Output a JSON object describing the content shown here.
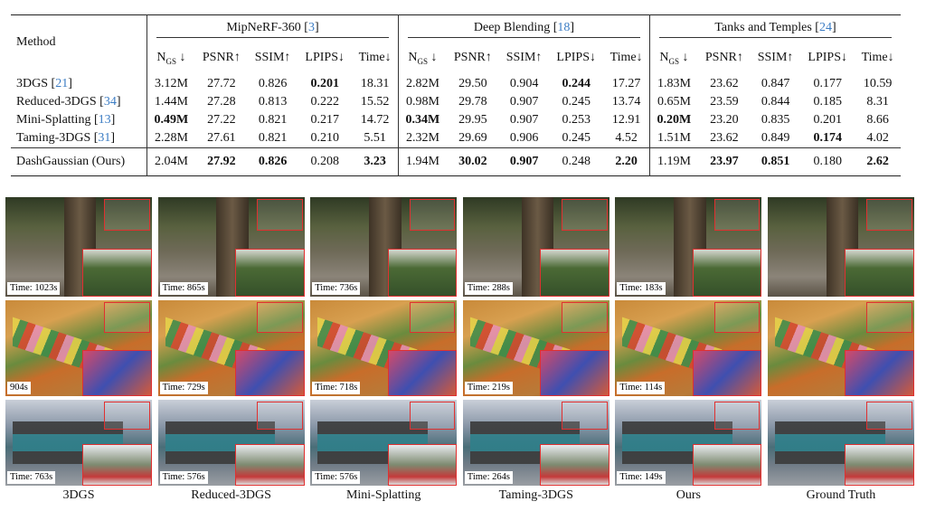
{
  "table": {
    "method_header": "Method",
    "groups": [
      {
        "name": "MipNeRF-360",
        "ref": "[3]"
      },
      {
        "name": "Deep Blending",
        "ref": "[18]"
      },
      {
        "name": "Tanks and Temples",
        "ref": "[24]"
      }
    ],
    "metrics": [
      {
        "main": "N",
        "sub": "GS",
        "arrow": " ↓"
      },
      {
        "main": "PSNR",
        "arrow": "↑"
      },
      {
        "main": "SSIM",
        "arrow": "↑"
      },
      {
        "main": "LPIPS",
        "arrow": "↓"
      },
      {
        "main": "Time",
        "arrow": "↓"
      }
    ],
    "rows": [
      {
        "method": "3DGS",
        "ref": "[21]",
        "cells": [
          "3.12M",
          "27.72",
          "0.826",
          "0.201",
          "18.31",
          "2.82M",
          "29.50",
          "0.904",
          "0.244",
          "17.27",
          "1.83M",
          "23.62",
          "0.847",
          "0.177",
          "10.59"
        ],
        "bold": [
          3,
          8
        ]
      },
      {
        "method": "Reduced-3DGS",
        "ref": "[34]",
        "cells": [
          "1.44M",
          "27.28",
          "0.813",
          "0.222",
          "15.52",
          "0.98M",
          "29.78",
          "0.907",
          "0.245",
          "13.74",
          "0.65M",
          "23.59",
          "0.844",
          "0.185",
          "8.31"
        ],
        "bold": []
      },
      {
        "method": "Mini-Splatting",
        "ref": "[13]",
        "cells": [
          "0.49M",
          "27.22",
          "0.821",
          "0.217",
          "14.72",
          "0.34M",
          "29.95",
          "0.907",
          "0.253",
          "12.91",
          "0.20M",
          "23.20",
          "0.835",
          "0.201",
          "8.66"
        ],
        "bold": [
          0,
          5,
          10
        ]
      },
      {
        "method": "Taming-3DGS",
        "ref": "[31]",
        "cells": [
          "2.28M",
          "27.61",
          "0.821",
          "0.210",
          "5.51",
          "2.32M",
          "29.69",
          "0.906",
          "0.245",
          "4.52",
          "1.51M",
          "23.62",
          "0.849",
          "0.174",
          "4.02"
        ],
        "bold": [
          13
        ]
      },
      {
        "method": "DashGaussian (Ours)",
        "cells": [
          "2.04M",
          "27.92",
          "0.826",
          "0.208",
          "3.23",
          "1.94M",
          "30.02",
          "0.907",
          "0.248",
          "2.20",
          "1.19M",
          "23.97",
          "0.851",
          "0.180",
          "2.62"
        ],
        "bold": [
          1,
          2,
          4,
          6,
          7,
          9,
          11,
          12,
          14
        ]
      }
    ]
  },
  "figure": {
    "columns": [
      "3DGS",
      "Reduced-3DGS",
      "Mini-Splatting",
      "Taming-3DGS",
      "Ours",
      "Ground Truth"
    ],
    "times": [
      [
        "Time: 1023s",
        "Time: 865s",
        "Time: 736s",
        "Time: 288s",
        "Time: 183s"
      ],
      [
        "904s",
        "Time: 729s",
        "Time: 718s",
        "Time: 219s",
        "Time: 114s"
      ],
      [
        "Time: 763s",
        "Time: 576s",
        "Time: 576s",
        "Time: 264s",
        "Time: 149s"
      ]
    ]
  }
}
